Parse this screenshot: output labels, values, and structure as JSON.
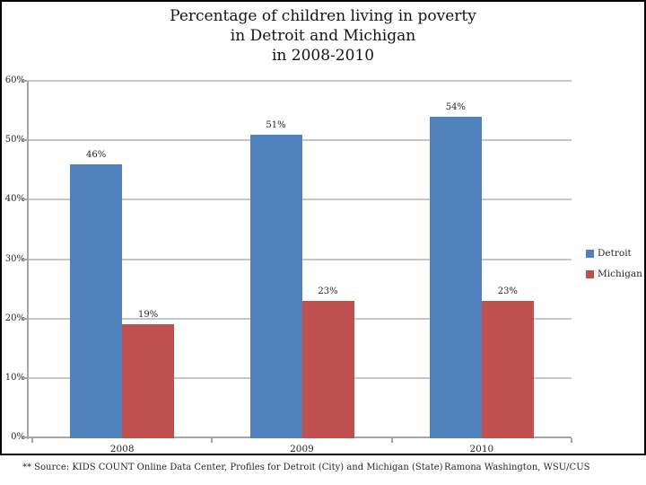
{
  "chart_data": {
    "type": "bar",
    "title": "Percentage of children living in poverty\nin Detroit and Michigan\nin 2008-2010",
    "categories": [
      "2008",
      "2009",
      "2010"
    ],
    "series": [
      {
        "name": "Detroit",
        "color": "#4f81bd",
        "values": [
          46,
          51,
          54
        ]
      },
      {
        "name": "Michigan",
        "color": "#c0504d",
        "values": [
          19,
          23,
          23
        ]
      }
    ],
    "data_label_format": "{v}%",
    "xlabel": "",
    "ylabel": "",
    "ylim": [
      0,
      60
    ],
    "ytick_step": 10,
    "ytick_labels": [
      "0%",
      "10%",
      "20%",
      "30%",
      "40%",
      "50%",
      "60%"
    ],
    "grid": true,
    "legend_position": "right",
    "colors": {
      "gridline": "#c6c6c6",
      "axis": "#a6a6a6",
      "frame_border": "#000000",
      "label_text": "#262626"
    }
  },
  "footer": {
    "source": "** Source: KIDS COUNT Online Data Center, Profiles for Detroit (City) and Michigan (State)",
    "credit": "Ramona Washington, WSU/CUS"
  }
}
